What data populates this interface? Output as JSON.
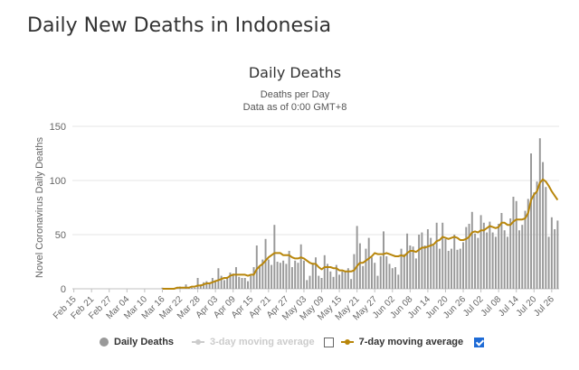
{
  "page": {
    "title": "Daily New Deaths in Indonesia"
  },
  "legend": {
    "daily": "Daily Deaths",
    "ma3": "3-day moving average",
    "ma7": "7-day moving average",
    "ma3_checked": false,
    "ma7_checked": true
  },
  "colors": {
    "bars": "#999999",
    "ma7": "#b8860b",
    "ma3": "#cccccc",
    "grid": "#e6e6e6",
    "checkbox": "#1e6bd6"
  },
  "chart_data": {
    "type": "bar",
    "title": "Daily Deaths",
    "subtitle": "Deaths per Day",
    "subtitle2": "Data as of 0:00 GMT+8",
    "ylabel": "Novel Coronavirus Daily Deaths",
    "ylim": [
      0,
      150
    ],
    "yticks": [
      0,
      50,
      100,
      150
    ],
    "start_date": "Feb 15",
    "xtick_labels": [
      "Feb 15",
      "Feb 21",
      "Feb 27",
      "Mar 04",
      "Mar 10",
      "Mar 16",
      "Mar 22",
      "Mar 28",
      "Apr 03",
      "Apr 09",
      "Apr 15",
      "Apr 21",
      "Apr 27",
      "May 03",
      "May 09",
      "May 15",
      "May 21",
      "May 27",
      "Jun 02",
      "Jun 08",
      "Jun 14",
      "Jun 20",
      "Jun 26",
      "Jul 02",
      "Jul 08",
      "Jul 14",
      "Jul 20",
      "Jul 26"
    ],
    "series": [
      {
        "name": "Daily Deaths",
        "type": "bar",
        "values": [
          0,
          0,
          0,
          0,
          0,
          0,
          0,
          0,
          0,
          0,
          0,
          0,
          0,
          0,
          0,
          0,
          0,
          0,
          0,
          0,
          0,
          0,
          0,
          0,
          0,
          0,
          0,
          0,
          0,
          0,
          1,
          0,
          0,
          0,
          0,
          1,
          2,
          0,
          4,
          1,
          1,
          1,
          10,
          4,
          6,
          7,
          5,
          10,
          8,
          19,
          12,
          8,
          11,
          15,
          14,
          20,
          11,
          10,
          10,
          7,
          12,
          20,
          40,
          21,
          27,
          46,
          27,
          22,
          59,
          25,
          24,
          26,
          23,
          35,
          20,
          26,
          24,
          41,
          26,
          8,
          12,
          24,
          29,
          12,
          10,
          31,
          23,
          16,
          11,
          22,
          13,
          16,
          16,
          19,
          9,
          32,
          58,
          42,
          21,
          37,
          47,
          29,
          24,
          12,
          30,
          53,
          30,
          23,
          19,
          20,
          13,
          37,
          32,
          51,
          40,
          39,
          28,
          50,
          52,
          40,
          55,
          47,
          40,
          61,
          37,
          61,
          46,
          35,
          37,
          50,
          36,
          37,
          43,
          57,
          60,
          71,
          51,
          47,
          68,
          61,
          52,
          62,
          52,
          48,
          60,
          70,
          54,
          48,
          65,
          85,
          81,
          54,
          59,
          72,
          83,
          125,
          89,
          99,
          139,
          117,
          94,
          48,
          66,
          55,
          63
        ]
      },
      {
        "name": "7-day moving average",
        "type": "line",
        "values": [
          null,
          null,
          null,
          null,
          null,
          null,
          null,
          null,
          null,
          null,
          null,
          null,
          null,
          null,
          null,
          null,
          null,
          null,
          null,
          null,
          null,
          null,
          null,
          null,
          null,
          null,
          null,
          null,
          null,
          null,
          0,
          0,
          0,
          0,
          0,
          1,
          1,
          1,
          1,
          1,
          2,
          2,
          3,
          3,
          4,
          5,
          5,
          6,
          7,
          8,
          9,
          10,
          10,
          12,
          13,
          13,
          13,
          13,
          13,
          12,
          13,
          13,
          18,
          21,
          23,
          26,
          29,
          31,
          33,
          33,
          33,
          31,
          31,
          31,
          29,
          28,
          28,
          29,
          28,
          26,
          24,
          23,
          23,
          20,
          18,
          20,
          20,
          20,
          19,
          19,
          17,
          17,
          16,
          16,
          16,
          17,
          21,
          24,
          24,
          26,
          28,
          30,
          33,
          32,
          32,
          32,
          33,
          32,
          31,
          30,
          30,
          31,
          30,
          33,
          35,
          35,
          34,
          36,
          38,
          38,
          39,
          40,
          41,
          44,
          45,
          48,
          47,
          46,
          47,
          48,
          47,
          45,
          45,
          46,
          48,
          52,
          53,
          52,
          54,
          54,
          56,
          58,
          57,
          56,
          57,
          61,
          61,
          59,
          59,
          62,
          64,
          64,
          64,
          65,
          70,
          82,
          87,
          90,
          98,
          101,
          99,
          95,
          90,
          86,
          82
        ]
      }
    ]
  }
}
